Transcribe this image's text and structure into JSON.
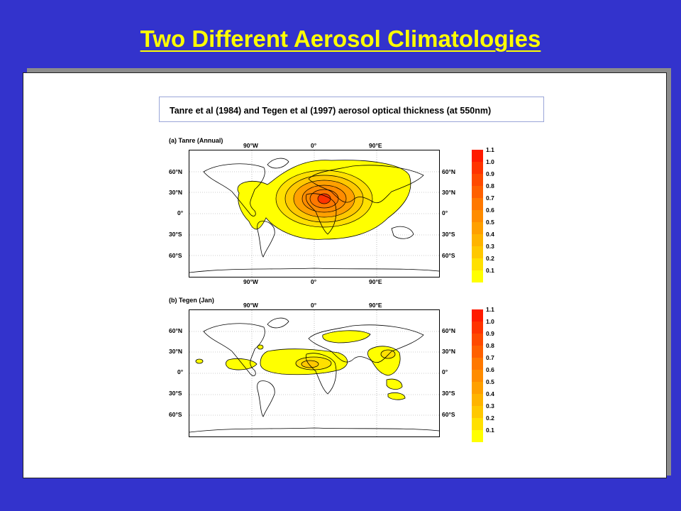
{
  "slide": {
    "title": "Two Different Aerosol Climatologies"
  },
  "figure": {
    "header": "Tanre et al (1984) and Tegen et al (1997) aerosol optical thickness (at 550nm)",
    "panels": [
      {
        "label": "(a) Tanre (Annual)"
      },
      {
        "label": "(b) Tegen (Jan)"
      }
    ],
    "lon_ticks": [
      "90°W",
      "0°",
      "90°E"
    ],
    "lat_ticks": [
      "60°N",
      "30°N",
      "0°",
      "30°S",
      "60°S"
    ],
    "colorbar": {
      "levels": [
        "1.1",
        "1.0",
        "0.9",
        "0.8",
        "0.7",
        "0.6",
        "0.5",
        "0.4",
        "0.3",
        "0.2",
        "0.1"
      ],
      "colors": [
        "#ff1a00",
        "#ff3300",
        "#ff4a00",
        "#ff6000",
        "#ff7800",
        "#ff8c00",
        "#ffa000",
        "#ffb400",
        "#ffc800",
        "#ffe000",
        "#ffff00"
      ]
    }
  }
}
